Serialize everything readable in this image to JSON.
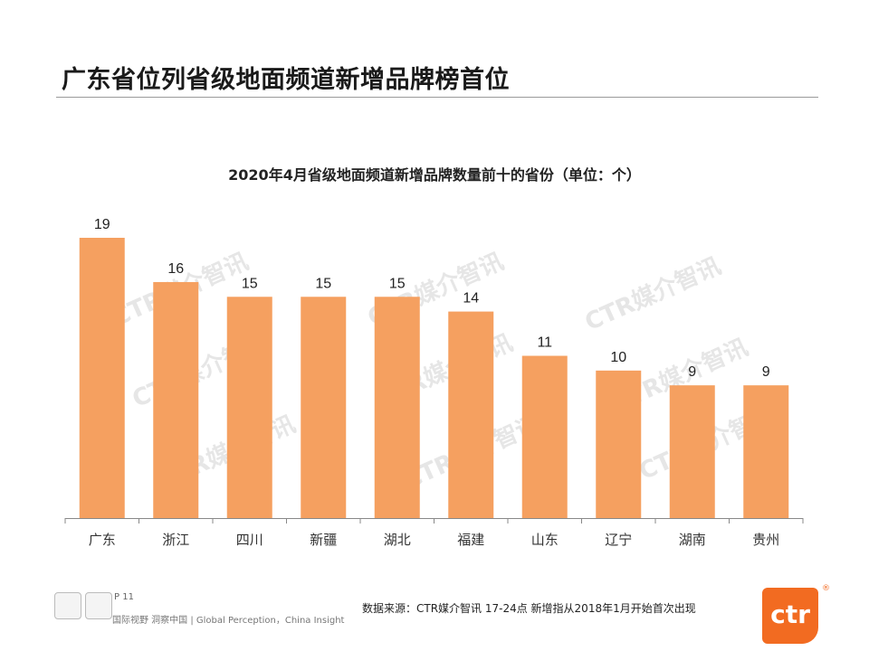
{
  "page": {
    "title": "广东省位列省级地面频道新增品牌榜首位",
    "page_number": "P 11",
    "slogan": "国际视野  洞察中国 |  Global Perception，China Insight",
    "source_note": "数据来源：CTR媒介智讯     17-24点    新增指从2018年1月开始首次出现",
    "logo_text": "ctr",
    "logo_reg": "®",
    "watermark_text": "CTR媒介智讯",
    "colors": {
      "bar": "#f5a060",
      "axis": "#888888",
      "logo": "#f26b21"
    }
  },
  "chart_data": {
    "type": "bar",
    "title": "2020年4月省级地面频道新增品牌数量前十的省份（单位：个）",
    "categories": [
      "广东",
      "浙江",
      "四川",
      "新疆",
      "湖北",
      "福建",
      "山东",
      "辽宁",
      "湖南",
      "贵州"
    ],
    "values": [
      19,
      16,
      15,
      15,
      15,
      14,
      11,
      10,
      9,
      9
    ],
    "xlabel": "",
    "ylabel": "",
    "ylim": [
      0,
      19
    ],
    "grid": false,
    "legend": "none"
  }
}
